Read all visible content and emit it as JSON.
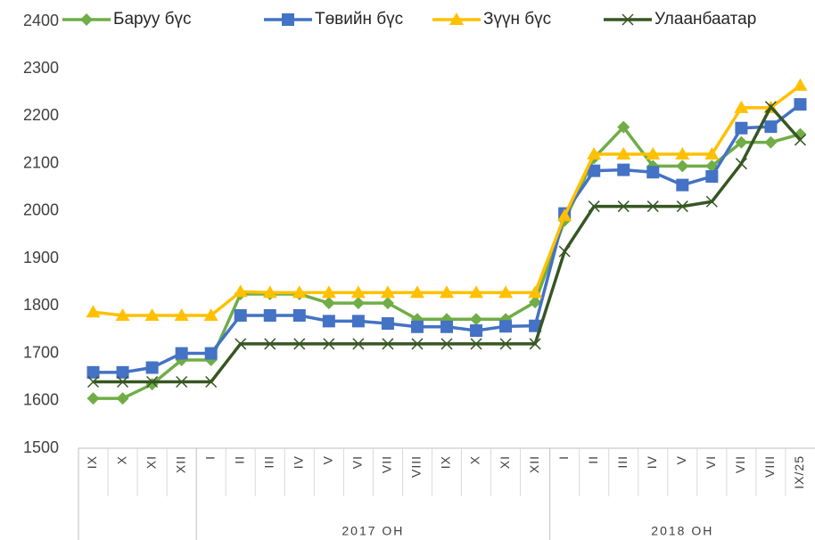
{
  "chart_data": {
    "type": "line",
    "categories": [
      "IX",
      "X",
      "XI",
      "XII",
      "I",
      "II",
      "III",
      "IV",
      "V",
      "VI",
      "VII",
      "VIII",
      "IX",
      "X",
      "XI",
      "XII",
      "I",
      "II",
      "III",
      "IV",
      "V",
      "VI",
      "VII",
      "VIII",
      "IX/25"
    ],
    "category_groups": [
      null,
      null,
      null,
      null,
      "2017 ОН",
      "2017 ОН",
      "2017 ОН",
      "2017 ОН",
      "2017 ОН",
      "2017 ОН",
      "2017 ОН",
      "2017 ОН",
      "2017 ОН",
      "2017 ОН",
      "2017 ОН",
      "2017 ОН",
      "2018 ОН",
      "2018 ОН",
      "2018 ОН",
      "2018 ОН",
      "2018 ОН",
      "2018 ОН",
      "2018 ОН",
      "2018 ОН",
      "2018 ОН"
    ],
    "series": [
      {
        "name": "Баруу бүс",
        "color": "#70ad47",
        "marker": "diamond",
        "values": [
          1605,
          1605,
          1635,
          1686,
          1686,
          1825,
          1825,
          1825,
          1806,
          1806,
          1806,
          1772,
          1772,
          1772,
          1772,
          1808,
          1980,
          2112,
          2177,
          2095,
          2095,
          2095,
          2145,
          2145,
          2162
        ]
      },
      {
        "name": "Төвийн бүс",
        "color": "#4472c4",
        "marker": "square",
        "values": [
          1660,
          1660,
          1670,
          1700,
          1700,
          1780,
          1780,
          1780,
          1768,
          1768,
          1763,
          1756,
          1756,
          1748,
          1757,
          1758,
          1995,
          2085,
          2087,
          2082,
          2055,
          2073,
          2175,
          2178,
          2225
        ]
      },
      {
        "name": "Зүүн бүс",
        "color": "#ffc000",
        "marker": "triangle",
        "values": [
          1787,
          1780,
          1780,
          1780,
          1780,
          1830,
          1828,
          1828,
          1828,
          1828,
          1828,
          1828,
          1828,
          1828,
          1828,
          1828,
          1990,
          2120,
          2120,
          2120,
          2120,
          2120,
          2218,
          2218,
          2265
        ]
      },
      {
        "name": "Улаанбаатар",
        "color": "#375623",
        "marker": "x",
        "values": [
          1640,
          1640,
          1640,
          1640,
          1640,
          1720,
          1720,
          1720,
          1720,
          1720,
          1720,
          1720,
          1720,
          1720,
          1720,
          1720,
          1915,
          2010,
          2010,
          2010,
          2010,
          2020,
          2100,
          2220,
          2150
        ]
      }
    ],
    "ylim": [
      1500,
      2400
    ],
    "yticks": [
      1500,
      1600,
      1700,
      1800,
      1900,
      2000,
      2100,
      2200,
      2300,
      2400
    ],
    "grid": false,
    "legend": "top"
  }
}
